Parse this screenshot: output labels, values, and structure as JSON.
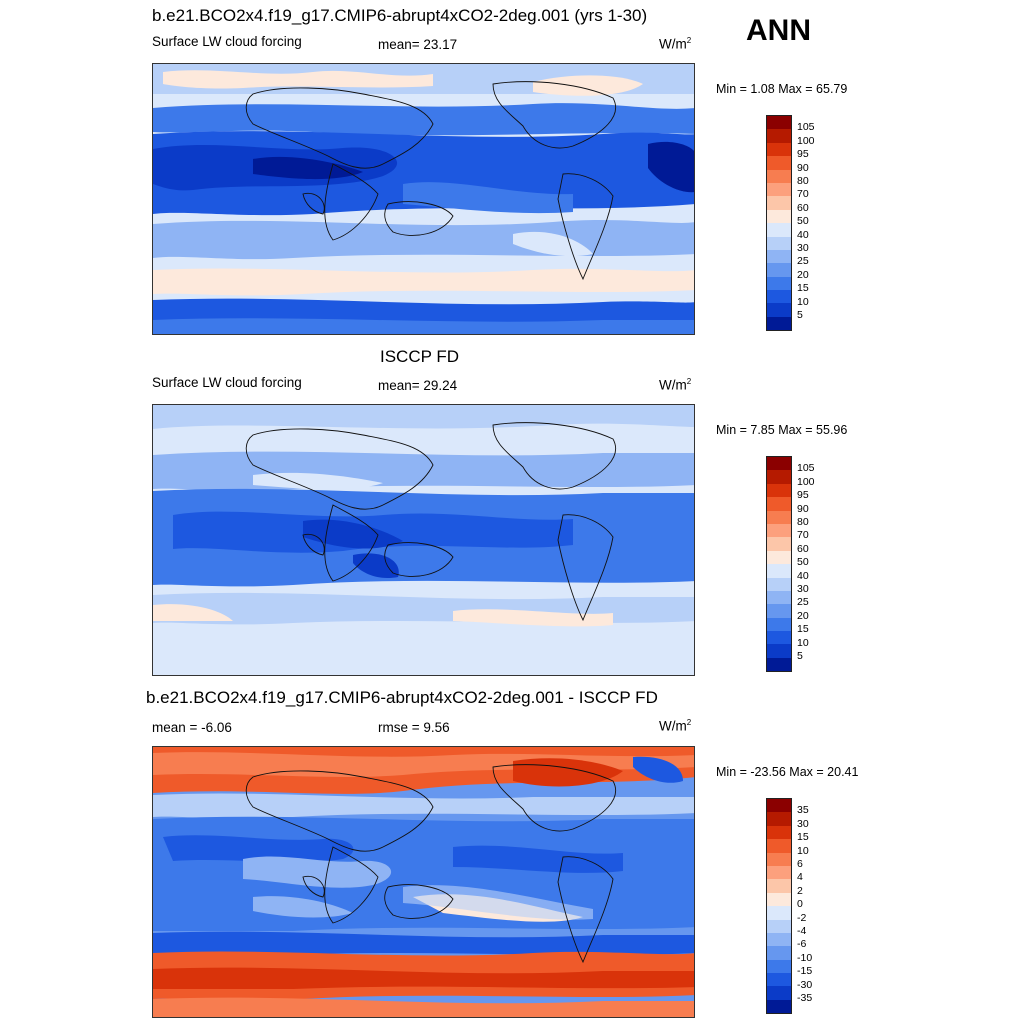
{
  "season": "ANN",
  "panels": [
    {
      "title": "b.e21.BCO2x4.f19_g17.CMIP6-abrupt4xCO2-2deg.001 (yrs 1-30)",
      "variable": "Surface LW cloud forcing",
      "stat": "mean=  23.17",
      "units": "W/m",
      "units_sup": "2",
      "minmax": "Min =   1.08 Max =  65.79",
      "cbar_labels": [
        "105",
        "100",
        "95",
        "90",
        "80",
        "70",
        "60",
        "50",
        "40",
        "30",
        "25",
        "20",
        "15",
        "10",
        "5"
      ],
      "cbar_colors": [
        "#8b0000",
        "#b51a00",
        "#d9330a",
        "#ef5a2a",
        "#f77d50",
        "#fca07d",
        "#fcc6a9",
        "#fde9dc",
        "#dbe8fb",
        "#b7d0f8",
        "#8fb4f4",
        "#6697ef",
        "#3d79ea",
        "#1d58e0",
        "#0b3bc8",
        "#001a96"
      ]
    },
    {
      "title": "ISCCP FD",
      "variable": "Surface LW cloud forcing",
      "stat": "mean=  29.24",
      "units": "W/m",
      "units_sup": "2",
      "minmax": "Min =   7.85 Max =  55.96",
      "cbar_labels": [
        "105",
        "100",
        "95",
        "90",
        "80",
        "70",
        "60",
        "50",
        "40",
        "30",
        "25",
        "20",
        "15",
        "10",
        "5"
      ],
      "cbar_colors": [
        "#8b0000",
        "#b51a00",
        "#d9330a",
        "#ef5a2a",
        "#f77d50",
        "#fca07d",
        "#fcc6a9",
        "#fde9dc",
        "#dbe8fb",
        "#b7d0f8",
        "#8fb4f4",
        "#6697ef",
        "#3d79ea",
        "#1d58e0",
        "#0b3bc8",
        "#001a96"
      ]
    },
    {
      "title": "b.e21.BCO2x4.f19_g17.CMIP6-abrupt4xCO2-2deg.001 - ISCCP FD",
      "variable": "mean =  -6.06",
      "stat": "rmse =   9.56",
      "units": "W/m",
      "units_sup": "2",
      "minmax": "Min = -23.56 Max =  20.41",
      "cbar_labels": [
        "35",
        "30",
        "15",
        "10",
        "6",
        "4",
        "2",
        "0",
        "-2",
        "-4",
        "-6",
        "-10",
        "-15",
        "-30",
        "-35"
      ],
      "cbar_colors": [
        "#8b0000",
        "#b51a00",
        "#d9330a",
        "#ef5a2a",
        "#f77d50",
        "#fca07d",
        "#fcc6a9",
        "#fde9dc",
        "#dbe8fb",
        "#b7d0f8",
        "#8fb4f4",
        "#6697ef",
        "#3d79ea",
        "#1d58e0",
        "#0b3bc8",
        "#001a96"
      ]
    }
  ]
}
